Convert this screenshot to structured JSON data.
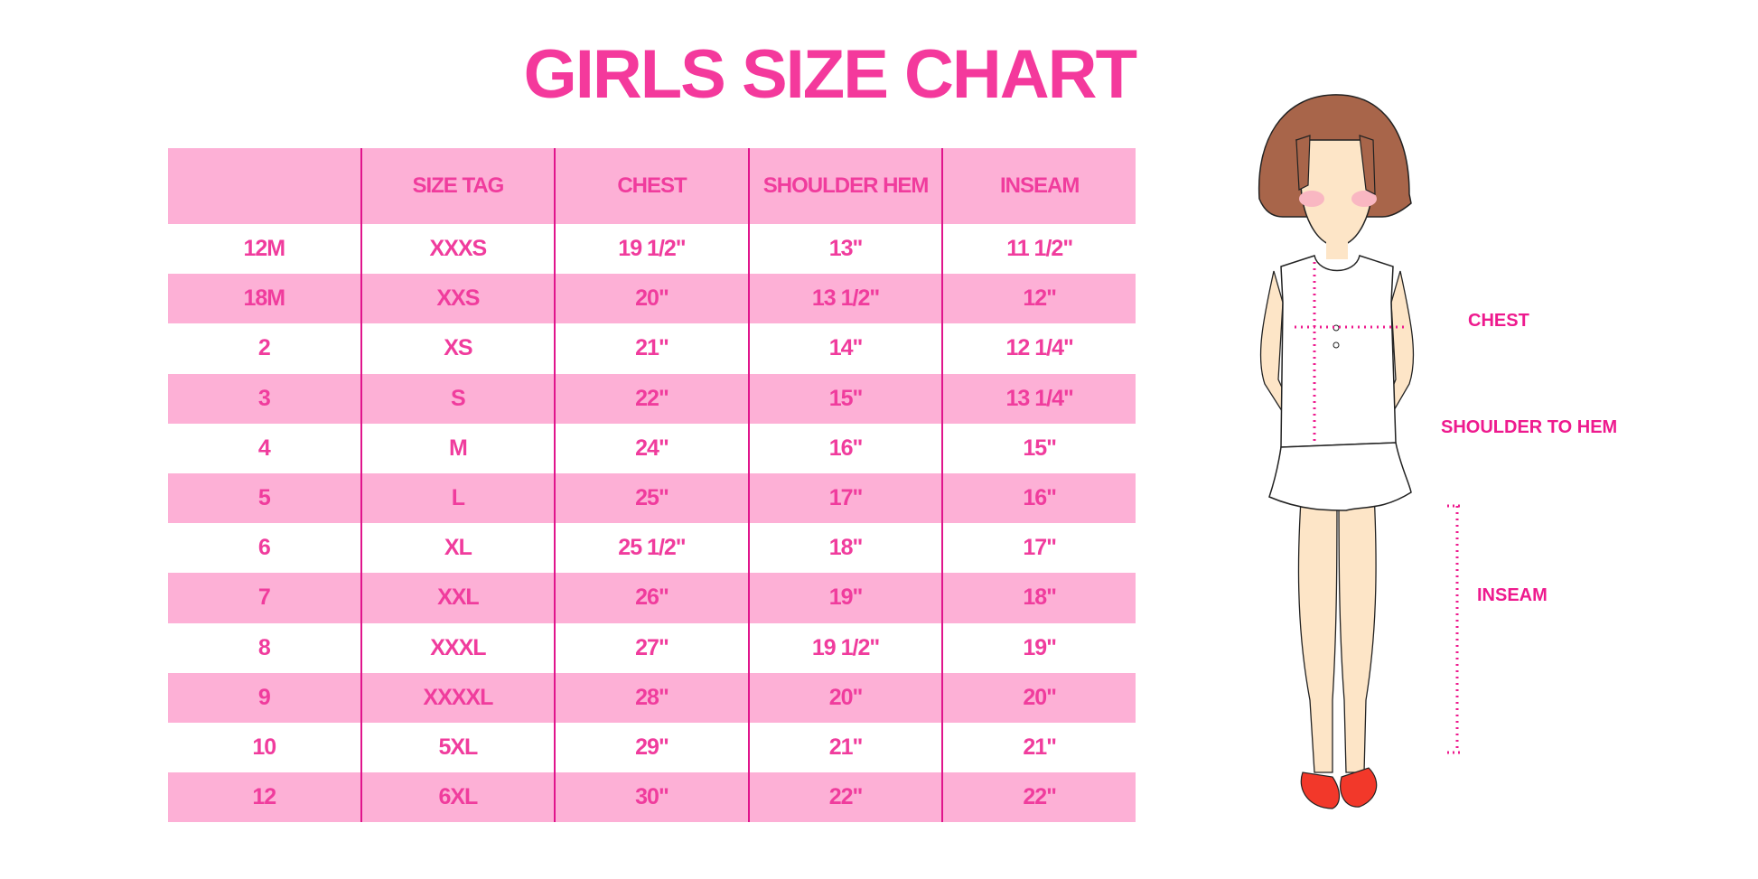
{
  "title": "GIRLS SIZE CHART",
  "table": {
    "headers": [
      "",
      "SIZE TAG",
      "CHEST",
      "SHOULDER HEM",
      "INSEAM"
    ],
    "rows": [
      [
        "12M",
        "XXXS",
        "19 1/2\"",
        "13\"",
        "11 1/2\""
      ],
      [
        "18M",
        "XXS",
        "20\"",
        "13 1/2\"",
        "12\""
      ],
      [
        "2",
        "XS",
        "21\"",
        "14\"",
        "12 1/4\""
      ],
      [
        "3",
        "S",
        "22\"",
        "15\"",
        "13 1/4\""
      ],
      [
        "4",
        "M",
        "24\"",
        "16\"",
        "15\""
      ],
      [
        "5",
        "L",
        "25\"",
        "17\"",
        "16\""
      ],
      [
        "6",
        "XL",
        "25 1/2\"",
        "18\"",
        "17\""
      ],
      [
        "7",
        "XXL",
        "26\"",
        "19\"",
        "18\""
      ],
      [
        "8",
        "XXXL",
        "27\"",
        "19 1/2\"",
        "19\""
      ],
      [
        "9",
        "XXXXL",
        "28\"",
        "20\"",
        "20\""
      ],
      [
        "10",
        "5XL",
        "29\"",
        "21\"",
        "21\""
      ],
      [
        "12",
        "6XL",
        "30\"",
        "22\"",
        "22\""
      ]
    ]
  },
  "figure": {
    "labels": {
      "chest": "CHEST",
      "shoulder_to_hem": "SHOULDER TO HEM",
      "inseam": "INSEAM"
    }
  },
  "colors": {
    "text": "#F03C9D",
    "row_fill": "#FDB0D6",
    "divider": "#E0158C",
    "measure": "#EE1A8E"
  }
}
